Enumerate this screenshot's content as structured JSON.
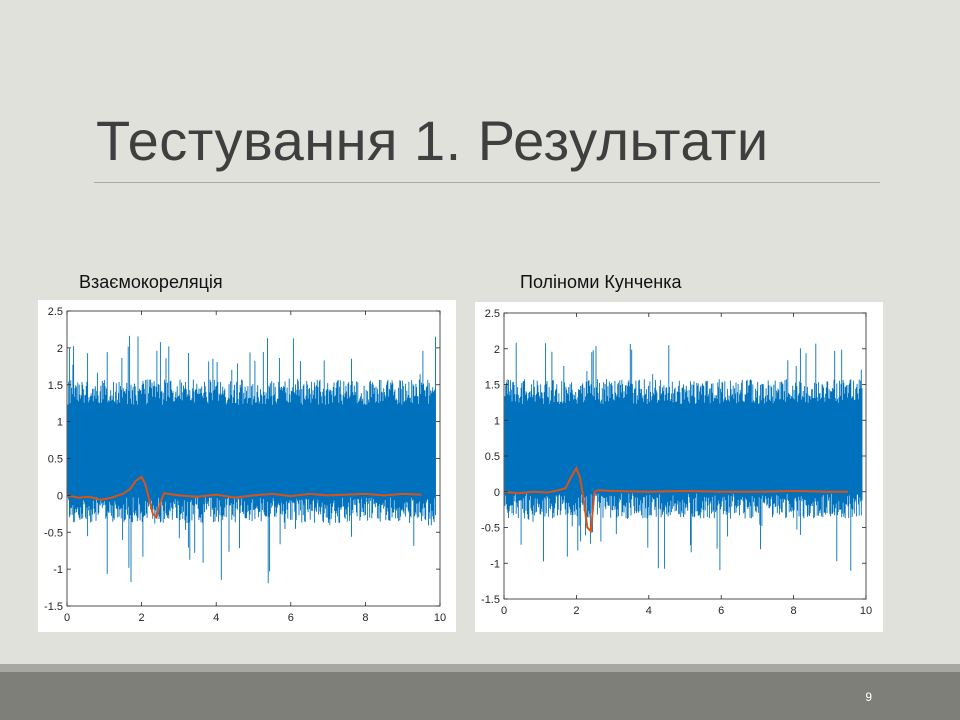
{
  "slide": {
    "title": "Тестування 1. Результати",
    "page_number": "9",
    "colors": {
      "background": "#e1e1dc",
      "footer": "#7e7f79",
      "signal": "#0072bd",
      "correlation": "#d95319"
    }
  },
  "chart_data": [
    {
      "type": "line",
      "caption": "Взаємокореляція",
      "xlim": [
        0,
        10
      ],
      "ylim": [
        -1.5,
        2.5
      ],
      "xticks": [
        "0",
        "2",
        "4",
        "6",
        "8",
        "10"
      ],
      "yticks": [
        "-1.5",
        "-1",
        "-0.5",
        "0",
        "0.5",
        "1",
        "1.5",
        "2",
        "2.5"
      ],
      "series": [
        {
          "kind": "noise-band",
          "color": "#0072bd",
          "x_range": [
            0,
            10
          ],
          "band_low": -0.2,
          "band_high": 1.4,
          "spike_max": 2.2,
          "spike_min": -1.2
        },
        {
          "color": "#d95319",
          "x": [
            0,
            0.3,
            0.6,
            0.9,
            1.2,
            1.5,
            1.7,
            1.85,
            2.0,
            2.1,
            2.2,
            2.3,
            2.4,
            2.5,
            2.6,
            3.0,
            3.5,
            4.0,
            4.5,
            5.0,
            5.5,
            6.0,
            6.5,
            7.0,
            7.5,
            8.0,
            8.5,
            9.0,
            9.5
          ],
          "y": [
            0.0,
            -0.03,
            -0.02,
            -0.06,
            -0.03,
            0.02,
            0.09,
            0.2,
            0.25,
            0.15,
            -0.05,
            -0.25,
            -0.3,
            -0.1,
            0.03,
            0.0,
            -0.02,
            0.01,
            -0.03,
            0.0,
            0.02,
            -0.01,
            0.02,
            0.0,
            0.01,
            0.02,
            0.0,
            0.02,
            0.01
          ]
        }
      ]
    },
    {
      "type": "line",
      "caption": "Поліноми Кунченка",
      "xlim": [
        0,
        10
      ],
      "ylim": [
        -1.5,
        2.5
      ],
      "xticks": [
        "0",
        "2",
        "4",
        "6",
        "8",
        "10"
      ],
      "yticks": [
        "-1.5",
        "-1",
        "-0.5",
        "0",
        "0.5",
        "1",
        "1.5",
        "2",
        "2.5"
      ],
      "series": [
        {
          "kind": "noise-band",
          "color": "#0072bd",
          "x_range": [
            0,
            10
          ],
          "band_low": -0.2,
          "band_high": 1.4,
          "spike_max": 2.1,
          "spike_min": -1.15
        },
        {
          "color": "#d95319",
          "x": [
            0,
            0.4,
            0.8,
            1.2,
            1.5,
            1.7,
            1.85,
            2.0,
            2.1,
            2.2,
            2.3,
            2.4,
            2.5,
            2.6,
            3.0,
            4.0,
            5.0,
            6.0,
            7.0,
            8.0,
            9.0,
            9.5
          ],
          "y": [
            0.0,
            -0.02,
            0.0,
            -0.01,
            0.02,
            0.05,
            0.2,
            0.33,
            0.2,
            -0.1,
            -0.5,
            -0.55,
            0.0,
            0.02,
            0.01,
            0.0,
            0.01,
            0.0,
            0.0,
            0.01,
            0.0,
            0.0
          ]
        }
      ]
    }
  ]
}
